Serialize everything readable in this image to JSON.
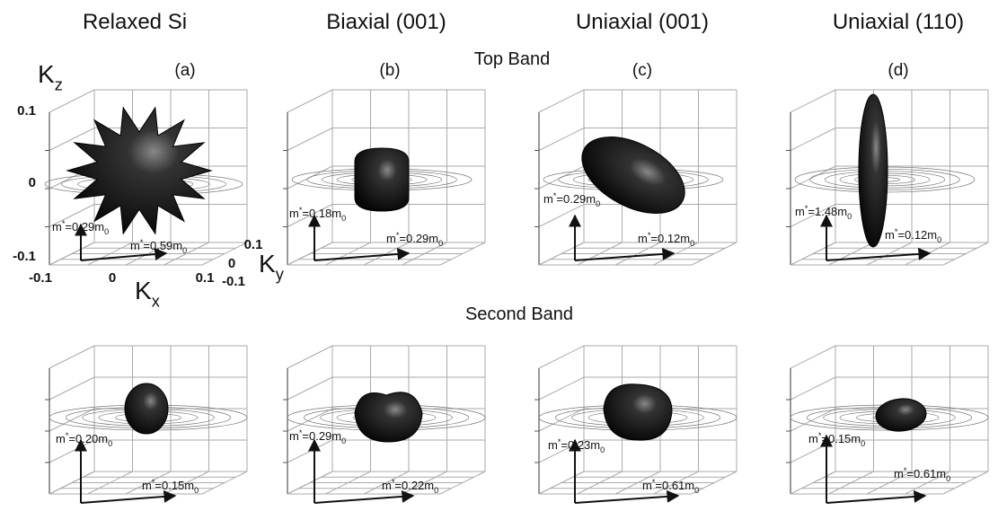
{
  "column_titles": [
    "Relaxed Si",
    "Biaxial (001)",
    "Uniaxial (001)",
    "Uniaxial (110)"
  ],
  "panel_labels": [
    "(a)",
    "(b)",
    "(c)",
    "(d)"
  ],
  "row_titles": [
    "Top Band",
    "Second Band"
  ],
  "axes": {
    "kz": [
      "K",
      "z"
    ],
    "kx": [
      "K",
      "x"
    ],
    "ky": [
      "K",
      "y"
    ],
    "z_ticks": [
      "0.1",
      "0",
      "-0.1"
    ],
    "x_ticks": [
      "-0.1",
      "0",
      "0.1"
    ],
    "y_ticks": [
      "-0.1",
      "0",
      "0.1"
    ]
  },
  "top_band_masses": [
    [
      [
        "m",
        "*",
        "=0.29m",
        "0"
      ],
      [
        "m",
        "*",
        "=0.59m",
        "0"
      ]
    ],
    [
      [
        "m",
        "*",
        "=0.18m",
        "0"
      ],
      [
        "m",
        "*",
        "=0.29m",
        "0"
      ]
    ],
    [
      [
        "m",
        "*",
        "=0.29m",
        "0"
      ],
      [
        "m",
        "*",
        "=0.12m",
        "0"
      ]
    ],
    [
      [
        "m",
        "*",
        "=1.48m",
        "0"
      ],
      [
        "m",
        "*",
        "=0.12m",
        "0"
      ]
    ]
  ],
  "second_band_masses": [
    [
      [
        "m",
        "*",
        "=0.20m",
        "0"
      ],
      [
        "m",
        "*",
        "=0.15m",
        "0"
      ]
    ],
    [
      [
        "m",
        "*",
        "=0.29m",
        "0"
      ],
      [
        "m",
        "*",
        "=0.22m",
        "0"
      ]
    ],
    [
      [
        "m",
        "*",
        "=0.23m",
        "0"
      ],
      [
        "m",
        "*",
        "=0.61m",
        "0"
      ]
    ],
    [
      [
        "m",
        "*",
        "=0.15m",
        "0"
      ],
      [
        "m",
        "*",
        "=0.61m",
        "0"
      ]
    ]
  ]
}
